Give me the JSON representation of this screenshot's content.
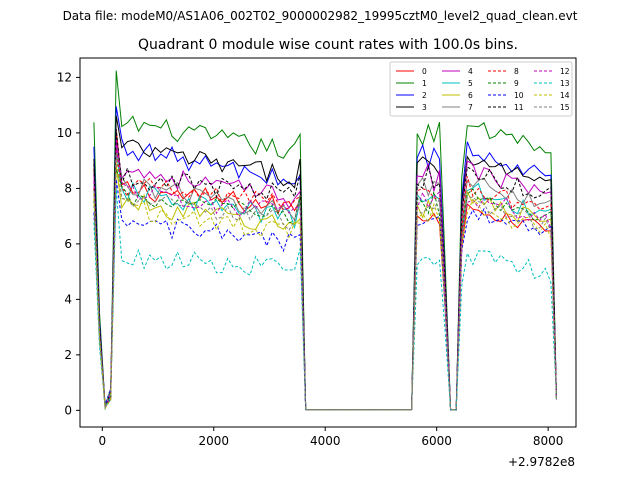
{
  "suptitle": "Data file: modeM0/AS1A06_002T02_9000002982_19995cztM0_level2_quad_clean.evt",
  "chart_data": {
    "type": "line",
    "title": "Quadrant 0 module wise count rates with 100.0s bins.",
    "xlabel": "",
    "ylabel": "",
    "x_offset_label": "+2.9782e8",
    "xlim": [
      -400,
      8500
    ],
    "ylim": [
      -0.6,
      12.7
    ],
    "xticks": [
      0,
      2000,
      4000,
      6000,
      8000
    ],
    "yticks": [
      0,
      2,
      4,
      6,
      8,
      10,
      12
    ],
    "grid": false,
    "legend_position": "top-right",
    "legend_columns": 4,
    "segments": [
      {
        "x": [
          -150,
          -50,
          50,
          150,
          250,
          350,
          450,
          550,
          650,
          750,
          850,
          950,
          1050,
          1150,
          1250,
          1350,
          1450,
          1550,
          1650,
          1750,
          1850,
          1950,
          2050,
          2150,
          2250,
          2350,
          2450,
          2550,
          2650,
          2750,
          2850,
          2950,
          3050,
          3150,
          3250,
          3350,
          3450,
          3550,
          3650
        ]
      },
      {
        "x": [
          3650,
          3750,
          3850,
          3950,
          4050,
          4150,
          4250,
          4350,
          4450,
          4550,
          4650,
          4750,
          4850,
          4950,
          5050,
          5150,
          5250,
          5350,
          5450,
          5550
        ]
      },
      {
        "x": [
          5550,
          5650,
          5750,
          5850,
          5950,
          6050,
          6150,
          6250,
          6350,
          6450,
          6550,
          6650,
          6750,
          6850,
          6950,
          7050,
          7150,
          7250,
          7350,
          7450,
          7550,
          7650,
          7750,
          7850,
          7950,
          8050,
          8150
        ]
      }
    ],
    "series": [
      {
        "name": "0",
        "color": "#ff0000",
        "dash": false,
        "levels": [
          9.9,
          8.0,
          7.3,
          6.9
        ]
      },
      {
        "name": "1",
        "color": "#008000",
        "dash": false,
        "levels": [
          11.8,
          10.4,
          9.3,
          9.9
        ]
      },
      {
        "name": "2",
        "color": "#0000ff",
        "dash": false,
        "levels": [
          10.8,
          9.5,
          8.2,
          9.0
        ]
      },
      {
        "name": "3",
        "color": "#000000",
        "dash": false,
        "levels": [
          10.3,
          9.5,
          8.4,
          8.8
        ]
      },
      {
        "name": "4",
        "color": "#bf00bf",
        "dash": false,
        "levels": [
          9.7,
          8.7,
          7.6,
          8.3
        ]
      },
      {
        "name": "5",
        "color": "#00bfbf",
        "dash": false,
        "levels": [
          9.1,
          7.9,
          6.9,
          7.6
        ]
      },
      {
        "name": "6",
        "color": "#bfbf00",
        "dash": false,
        "levels": [
          8.8,
          7.5,
          6.6,
          7.2
        ]
      },
      {
        "name": "7",
        "color": "#808080",
        "dash": false,
        "levels": [
          9.3,
          8.2,
          7.1,
          7.9
        ]
      },
      {
        "name": "8",
        "color": "#ff0000",
        "dash": true,
        "levels": [
          9.1,
          8.1,
          7.4,
          7.7
        ]
      },
      {
        "name": "9",
        "color": "#008000",
        "dash": true,
        "levels": [
          8.6,
          7.7,
          7.0,
          7.4
        ]
      },
      {
        "name": "10",
        "color": "#0000ff",
        "dash": true,
        "levels": [
          8.1,
          6.8,
          6.0,
          6.8
        ]
      },
      {
        "name": "11",
        "color": "#000000",
        "dash": true,
        "levels": [
          10.1,
          8.4,
          7.8,
          8.3
        ]
      },
      {
        "name": "12",
        "color": "#bf00bf",
        "dash": true,
        "levels": [
          9.4,
          8.0,
          7.0,
          7.4
        ]
      },
      {
        "name": "13",
        "color": "#00bfbf",
        "dash": true,
        "levels": [
          7.7,
          5.5,
          5.1,
          5.3
        ]
      },
      {
        "name": "14",
        "color": "#bfbf00",
        "dash": true,
        "levels": [
          8.9,
          7.3,
          6.4,
          7.0
        ]
      },
      {
        "name": "15",
        "color": "#808080",
        "dash": true,
        "levels": [
          9.0,
          7.6,
          6.8,
          7.2
        ]
      }
    ]
  }
}
